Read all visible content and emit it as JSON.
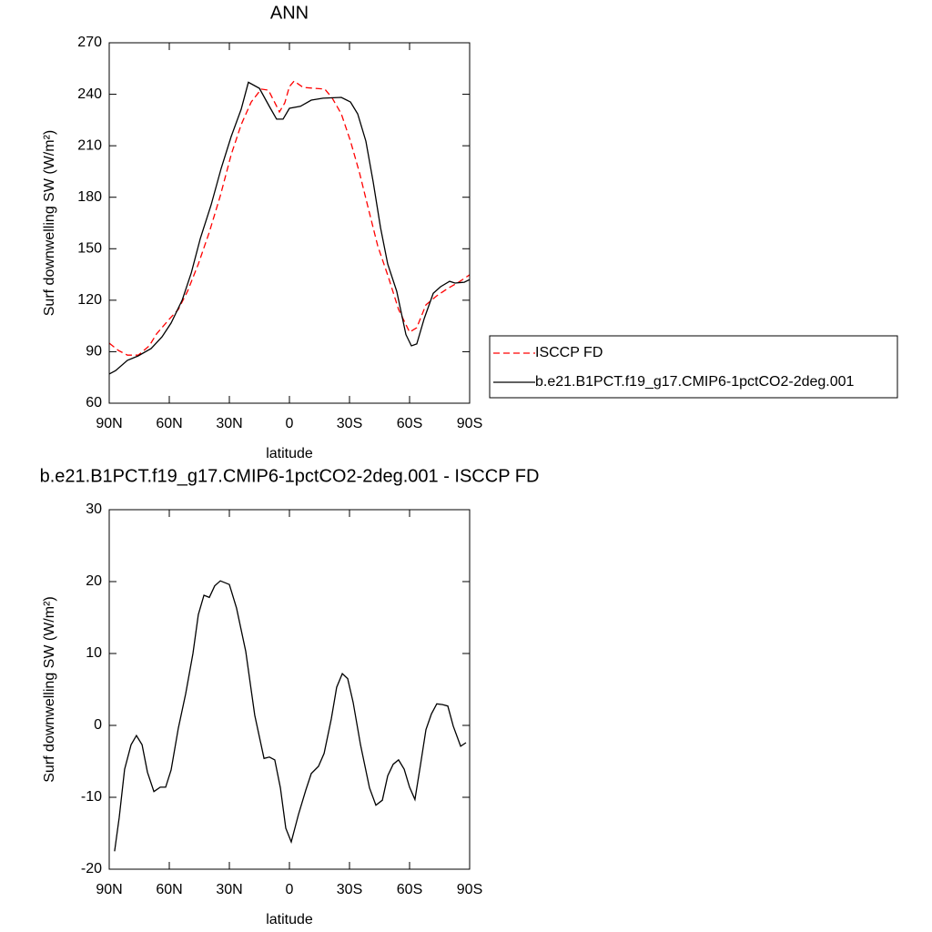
{
  "chart_data": [
    {
      "type": "line",
      "title": "ANN",
      "xlabel": "latitude",
      "ylabel": "Surf downwelling SW (W/m²)",
      "xlim": [
        90,
        -90
      ],
      "ylim": [
        60,
        270
      ],
      "xticks": [
        {
          "value": 90,
          "label": "90N"
        },
        {
          "value": 60,
          "label": "60N"
        },
        {
          "value": 30,
          "label": "30N"
        },
        0,
        {
          "value": -30,
          "label": "30S"
        },
        {
          "value": -60,
          "label": "60S"
        },
        {
          "value": -90,
          "label": "90S"
        }
      ],
      "yticks": [
        60,
        90,
        120,
        150,
        180,
        210,
        240,
        270
      ],
      "legend": "right",
      "series": [
        {
          "name": "ISCCP FD",
          "color": "#ff0000",
          "line_style": "dashed",
          "x": [
            90,
            85.5,
            80.9,
            75.5,
            70,
            66.4,
            60.5,
            55.5,
            50.9,
            45.5,
            40,
            34.5,
            29.1,
            24.1,
            19.1,
            14.1,
            10.5,
            6.8,
            5,
            2.3,
            0,
            -2.3,
            -6.8,
            -12.3,
            -17.7,
            -21.4,
            -25.9,
            -30.5,
            -35,
            -39.5,
            -44.1,
            -49.5,
            -54.5,
            -60,
            -63.6,
            -68.2,
            -73.6,
            -79,
            -84.5,
            -90
          ],
          "values": [
            95,
            90.8,
            88,
            88,
            93.4,
            100.3,
            108.3,
            114.6,
            125.2,
            141.1,
            159.7,
            180.9,
            204.8,
            222.3,
            235.5,
            243,
            242.4,
            234,
            229.7,
            235,
            244.5,
            247.7,
            244,
            243.5,
            243,
            237.7,
            228.6,
            212.7,
            194.2,
            173,
            151.7,
            133.2,
            114.6,
            101.4,
            104,
            117.3,
            122.6,
            126.8,
            130.5,
            134.8
          ]
        },
        {
          "name": "b.e21.B1PCT.f19_g17.CMIP6-1pctCO2-2deg.001",
          "color": "#000000",
          "line_style": "solid",
          "x": [
            90,
            86.8,
            80.9,
            75.5,
            69.1,
            63.6,
            59.1,
            53.6,
            49,
            44.5,
            39.1,
            34.1,
            29.1,
            24.1,
            20.5,
            15,
            10,
            6.4,
            3.2,
            0,
            -5.5,
            -10.9,
            -16.8,
            -25.9,
            -30.5,
            -34.1,
            -38.2,
            -41.8,
            -45.5,
            -49.1,
            -53.6,
            -58.2,
            -60.9,
            -63.6,
            -67.3,
            -71.8,
            -75.5,
            -80,
            -82.7,
            -87.3,
            -90
          ],
          "values": [
            77,
            79,
            85,
            87.6,
            91.8,
            98.7,
            106.7,
            120,
            136,
            156,
            175.6,
            196.8,
            215.4,
            231.3,
            247,
            243.5,
            232.9,
            225.5,
            225.5,
            231.8,
            233,
            236.6,
            237.7,
            238.2,
            235.5,
            228.6,
            212.7,
            189,
            162.3,
            141.1,
            125.2,
            100,
            93.4,
            94.5,
            109.3,
            124,
            127.9,
            131,
            130,
            130.5,
            132
          ]
        }
      ]
    },
    {
      "type": "line",
      "title": "b.e21.B1PCT.f19_g17.CMIP6-1pctCO2-2deg.001 - ISCCP FD",
      "xlabel": "latitude",
      "ylabel": "Surf downwelling SW (W/m²)",
      "xlim": [
        90,
        -90
      ],
      "ylim": [
        -20,
        30
      ],
      "xticks": [
        {
          "value": 90,
          "label": "90N"
        },
        {
          "value": 60,
          "label": "60N"
        },
        {
          "value": 30,
          "label": "30N"
        },
        0,
        {
          "value": -30,
          "label": "30S"
        },
        {
          "value": -60,
          "label": "60S"
        },
        {
          "value": -90,
          "label": "90S"
        }
      ],
      "yticks": [
        -20,
        -10,
        0,
        10,
        20,
        30
      ],
      "series": [
        {
          "color": "#000000",
          "line_style": "solid",
          "x": [
            87.3,
            85,
            82.3,
            79.1,
            76.4,
            73.6,
            70.9,
            67.7,
            64.5,
            61.8,
            59.1,
            55.5,
            51.8,
            48.2,
            45.5,
            42.7,
            40,
            37.3,
            34.5,
            30,
            26.4,
            21.8,
            17.3,
            12.7,
            10,
            7.3,
            4.5,
            1.8,
            -0.9,
            -4.5,
            -8.2,
            -10.9,
            -14.5,
            -17.3,
            -20.9,
            -23.6,
            -26.4,
            -29.1,
            -31.8,
            -35.5,
            -40,
            -43.2,
            -46.4,
            -49.1,
            -51.8,
            -54.5,
            -57.3,
            -60,
            -62.7,
            -65.5,
            -68.2,
            -70.9,
            -73.6,
            -76.4,
            -79.1,
            -81.8,
            -85.5,
            -88.2
          ],
          "values": [
            -17.5,
            -12.8,
            -6.1,
            -2.7,
            -1.4,
            -2.7,
            -6.5,
            -9.2,
            -8.6,
            -8.6,
            -6.2,
            -0.4,
            4.4,
            10,
            15.4,
            18.1,
            17.8,
            19.4,
            20.1,
            19.6,
            16.3,
            10.3,
            1.4,
            -4.6,
            -4.4,
            -4.8,
            -8.7,
            -14.3,
            -16.2,
            -12.4,
            -9,
            -6.7,
            -5.7,
            -3.9,
            0.9,
            5.3,
            7.2,
            6.5,
            3.2,
            -2.7,
            -8.7,
            -11.1,
            -10.4,
            -7,
            -5.4,
            -4.8,
            -6.1,
            -8.6,
            -10.3,
            -5.4,
            -0.6,
            1.6,
            3,
            2.9,
            2.7,
            -0.1,
            -2.9,
            -2.4
          ]
        }
      ]
    }
  ]
}
